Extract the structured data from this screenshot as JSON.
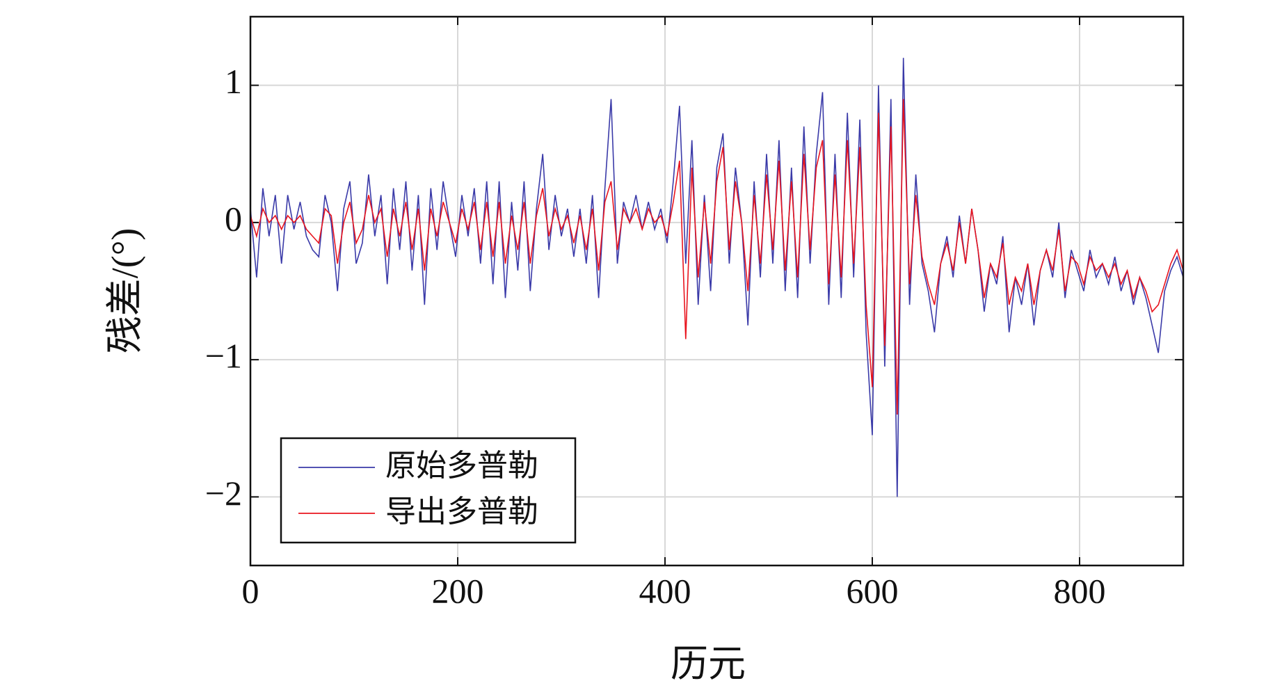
{
  "chart_data": {
    "type": "line",
    "xlabel": "历元",
    "ylabel": "残差/(°)",
    "xlim": [
      0,
      900
    ],
    "ylim": [
      -2.5,
      1.5
    ],
    "xticks": [
      0,
      200,
      400,
      600,
      800
    ],
    "yticks": [
      {
        "value": -2,
        "label": "−2"
      },
      {
        "value": -1,
        "label": "−1"
      },
      0,
      1
    ],
    "grid": true,
    "legend": "lower left",
    "x": [
      0,
      6,
      12,
      18,
      24,
      30,
      36,
      42,
      48,
      54,
      60,
      66,
      72,
      78,
      84,
      90,
      96,
      102,
      108,
      114,
      120,
      126,
      132,
      138,
      144,
      150,
      156,
      162,
      168,
      174,
      180,
      186,
      192,
      198,
      204,
      210,
      216,
      222,
      228,
      234,
      240,
      246,
      252,
      258,
      264,
      270,
      276,
      282,
      288,
      294,
      300,
      306,
      312,
      318,
      324,
      330,
      336,
      342,
      348,
      354,
      360,
      366,
      372,
      378,
      384,
      390,
      396,
      402,
      408,
      414,
      420,
      426,
      432,
      438,
      444,
      450,
      456,
      462,
      468,
      474,
      480,
      486,
      492,
      498,
      504,
      510,
      516,
      522,
      528,
      534,
      540,
      546,
      552,
      558,
      564,
      570,
      576,
      582,
      588,
      594,
      600,
      606,
      612,
      618,
      624,
      630,
      636,
      642,
      648,
      654,
      660,
      666,
      672,
      678,
      684,
      690,
      696,
      702,
      708,
      714,
      720,
      726,
      732,
      738,
      744,
      750,
      756,
      762,
      768,
      774,
      780,
      786,
      792,
      798,
      804,
      810,
      816,
      822,
      828,
      834,
      840,
      846,
      852,
      858,
      864,
      870,
      876,
      882,
      888,
      894,
      900
    ],
    "series": [
      {
        "name": "原始多普勒",
        "color": "#3a3aa8",
        "values": [
          0.1,
          -0.4,
          0.25,
          -0.1,
          0.2,
          -0.3,
          0.2,
          -0.05,
          0.15,
          -0.1,
          -0.2,
          -0.25,
          0.2,
          0.0,
          -0.5,
          0.1,
          0.3,
          -0.3,
          -0.15,
          0.35,
          -0.1,
          0.2,
          -0.45,
          0.25,
          -0.2,
          0.3,
          -0.35,
          0.2,
          -0.6,
          0.25,
          -0.2,
          0.3,
          0.0,
          -0.25,
          0.2,
          -0.1,
          0.25,
          -0.3,
          0.3,
          -0.45,
          0.3,
          -0.55,
          0.15,
          -0.35,
          0.3,
          -0.5,
          0.1,
          0.5,
          -0.2,
          0.2,
          -0.1,
          0.1,
          -0.25,
          0.1,
          -0.3,
          0.2,
          -0.55,
          0.25,
          0.9,
          -0.3,
          0.15,
          0.0,
          0.2,
          -0.05,
          0.15,
          -0.05,
          0.1,
          -0.15,
          0.3,
          0.85,
          -0.3,
          0.6,
          -0.6,
          0.2,
          -0.5,
          0.4,
          0.65,
          -0.3,
          0.4,
          0.0,
          -0.75,
          0.3,
          -0.4,
          0.5,
          -0.3,
          0.6,
          -0.5,
          0.4,
          -0.55,
          0.7,
          -0.3,
          0.5,
          0.95,
          -0.6,
          0.5,
          -0.55,
          0.8,
          -0.4,
          0.75,
          -0.8,
          -1.55,
          1.0,
          -1.05,
          0.9,
          -2.0,
          1.2,
          -0.6,
          0.35,
          -0.3,
          -0.5,
          -0.8,
          -0.3,
          -0.1,
          -0.4,
          0.05,
          -0.3,
          0.1,
          -0.2,
          -0.65,
          -0.3,
          -0.45,
          -0.1,
          -0.8,
          -0.4,
          -0.6,
          -0.3,
          -0.75,
          -0.35,
          -0.2,
          -0.4,
          0.0,
          -0.55,
          -0.2,
          -0.35,
          -0.5,
          -0.2,
          -0.4,
          -0.3,
          -0.45,
          -0.25,
          -0.5,
          -0.35,
          -0.6,
          -0.4,
          -0.55,
          -0.75,
          -0.95,
          -0.5,
          -0.35,
          -0.25,
          -0.4
        ]
      },
      {
        "name": "导出多普勒",
        "color": "#e8141e",
        "values": [
          0.05,
          -0.1,
          0.1,
          0.0,
          0.05,
          -0.05,
          0.05,
          0.0,
          0.05,
          -0.05,
          -0.1,
          -0.15,
          0.1,
          0.05,
          -0.3,
          0.0,
          0.15,
          -0.15,
          -0.05,
          0.2,
          0.0,
          0.1,
          -0.25,
          0.1,
          -0.1,
          0.15,
          -0.2,
          0.1,
          -0.35,
          0.1,
          -0.1,
          0.15,
          0.0,
          -0.15,
          0.1,
          -0.05,
          0.15,
          -0.2,
          0.15,
          -0.25,
          0.15,
          -0.3,
          0.05,
          -0.2,
          0.15,
          -0.3,
          0.05,
          0.25,
          -0.1,
          0.1,
          -0.05,
          0.05,
          -0.15,
          0.05,
          -0.2,
          0.1,
          -0.35,
          0.15,
          0.3,
          -0.2,
          0.1,
          0.0,
          0.1,
          -0.05,
          0.1,
          0.0,
          0.05,
          -0.1,
          0.15,
          0.45,
          -0.85,
          0.4,
          -0.4,
          0.15,
          -0.3,
          0.3,
          0.55,
          -0.2,
          0.3,
          0.0,
          -0.5,
          0.2,
          -0.3,
          0.35,
          -0.2,
          0.45,
          -0.35,
          0.3,
          -0.4,
          0.5,
          -0.2,
          0.4,
          0.6,
          -0.45,
          0.35,
          -0.4,
          0.6,
          -0.3,
          0.55,
          -0.6,
          -1.2,
          0.8,
          -0.9,
          0.7,
          -1.4,
          0.9,
          -0.45,
          0.2,
          -0.25,
          -0.45,
          -0.6,
          -0.3,
          -0.15,
          -0.35,
          0.0,
          -0.3,
          0.1,
          -0.2,
          -0.55,
          -0.3,
          -0.4,
          -0.15,
          -0.6,
          -0.4,
          -0.5,
          -0.3,
          -0.6,
          -0.35,
          -0.2,
          -0.35,
          -0.05,
          -0.5,
          -0.25,
          -0.3,
          -0.45,
          -0.25,
          -0.35,
          -0.3,
          -0.4,
          -0.3,
          -0.45,
          -0.35,
          -0.55,
          -0.4,
          -0.5,
          -0.65,
          -0.6,
          -0.45,
          -0.3,
          -0.2,
          -0.35
        ]
      }
    ]
  }
}
